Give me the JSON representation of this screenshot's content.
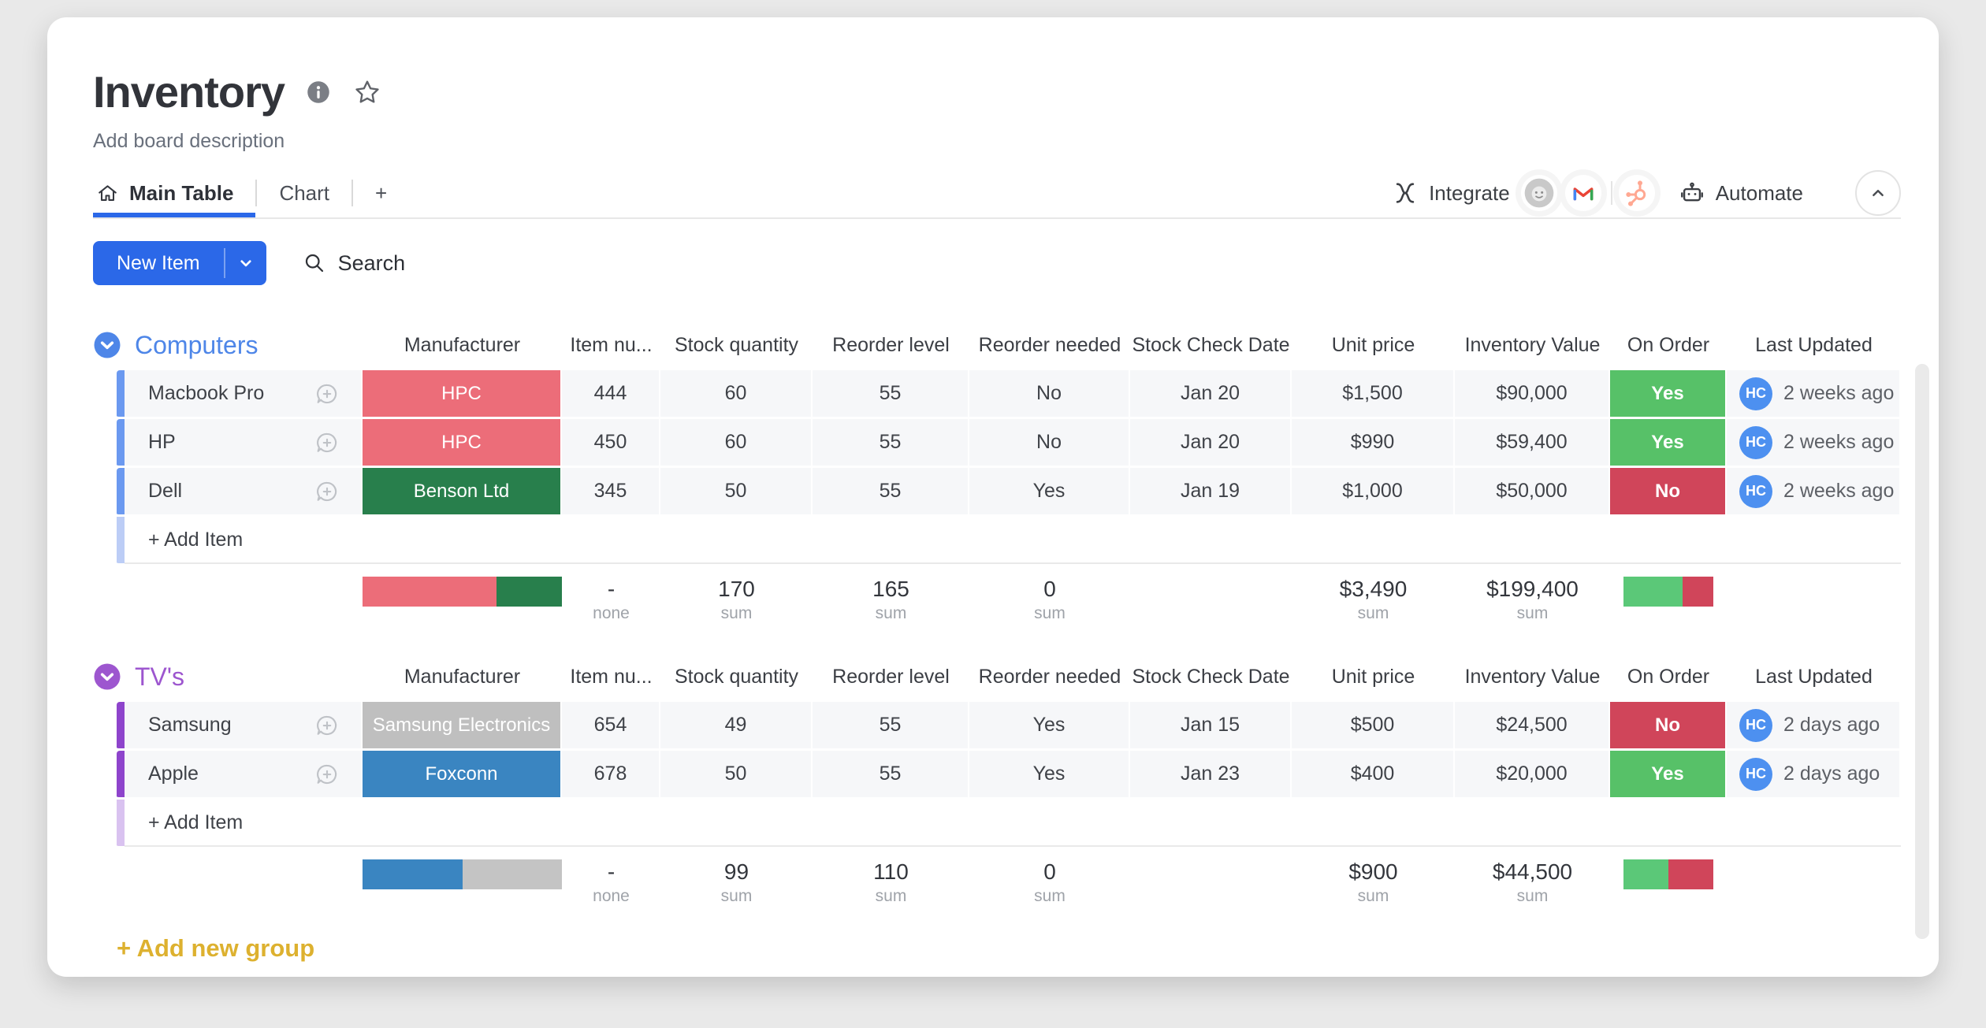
{
  "colors": {
    "accent_blue": "#2b68e8",
    "avatar_blue": "#4d90f0",
    "add_group_gold": "#ddb12f",
    "on_order_yes_green": "#57c168",
    "on_order_no_red": "#d0455a"
  },
  "icons": [
    "info-icon",
    "star-icon",
    "home-icon",
    "integrations-icon",
    "mailchimp-icon",
    "gmail-icon",
    "hubspot-icon",
    "automate-robot-icon",
    "collapse-up-icon",
    "caret-down-icon",
    "search-icon",
    "group-collapse-icon",
    "add-update-bubble-icon"
  ],
  "board": {
    "title": "Inventory",
    "description": "Add board description",
    "tabs": [
      {
        "label": "Main Table"
      },
      {
        "label": "Chart"
      }
    ],
    "new_tab_button": "+",
    "actions": {
      "integrate": "Integrate",
      "automate": "Automate"
    },
    "integration_icons": [
      "mailchimp",
      "gmail",
      "hubspot"
    ],
    "toolbar": {
      "new_item": "New Item",
      "search": "Search"
    },
    "add_new_group": "+ Add new group"
  },
  "table": {
    "columns": [
      "Manufacturer",
      "Item nu...",
      "Stock quantity",
      "Reorder level",
      "Reorder needed",
      "Stock Check Date",
      "Unit price",
      "Inventory Value",
      "On Order",
      "Last Updated"
    ]
  },
  "groups": [
    {
      "name": "Computers",
      "color": "#4e86e8",
      "row_bar_color": "#6b99f0",
      "add_bar_color": "#bccdf6",
      "add_item": "+ Add Item",
      "rows": [
        {
          "name": "Macbook Pro",
          "manufacturer": {
            "label": "HPC",
            "color": "#ec6d79"
          },
          "item_number": "444",
          "stock_quantity": "60",
          "reorder_level": "55",
          "reorder_needed": "No",
          "stock_check_date": "Jan 20",
          "unit_price": "$1,500",
          "inventory_value": "$90,000",
          "on_order": {
            "label": "Yes",
            "color": "#57c168"
          },
          "avatar": "HC",
          "last_updated": "2 weeks ago"
        },
        {
          "name": "HP",
          "manufacturer": {
            "label": "HPC",
            "color": "#ec6d79"
          },
          "item_number": "450",
          "stock_quantity": "60",
          "reorder_level": "55",
          "reorder_needed": "No",
          "stock_check_date": "Jan 20",
          "unit_price": "$990",
          "inventory_value": "$59,400",
          "on_order": {
            "label": "Yes",
            "color": "#57c168"
          },
          "avatar": "HC",
          "last_updated": "2 weeks ago"
        },
        {
          "name": "Dell",
          "manufacturer": {
            "label": "Benson Ltd",
            "color": "#287f4c"
          },
          "item_number": "345",
          "stock_quantity": "50",
          "reorder_level": "55",
          "reorder_needed": "Yes",
          "stock_check_date": "Jan 19",
          "unit_price": "$1,000",
          "inventory_value": "$50,000",
          "on_order": {
            "label": "No",
            "color": "#d0455a"
          },
          "avatar": "HC",
          "last_updated": "2 weeks ago"
        }
      ],
      "summary": {
        "manufacturer_bar": [
          {
            "color": "#ec6d79",
            "pct": 67
          },
          {
            "color": "#287f4c",
            "pct": 33
          }
        ],
        "item_number": {
          "value": "-",
          "label": "none"
        },
        "stock_quantity": {
          "value": "170",
          "label": "sum"
        },
        "reorder_level": {
          "value": "165",
          "label": "sum"
        },
        "reorder_needed": {
          "value": "0",
          "label": "sum"
        },
        "unit_price": {
          "value": "$3,490",
          "label": "sum"
        },
        "inventory_value": {
          "value": "$199,400",
          "label": "sum"
        },
        "on_order_bar": [
          {
            "color": "#5bc878",
            "pct": 66
          },
          {
            "color": "#d0455a",
            "pct": 34
          }
        ]
      }
    },
    {
      "name": "TV's",
      "color": "#9d56cf",
      "row_bar_color": "#8e44cc",
      "add_bar_color": "#d9c2f0",
      "add_item": "+ Add Item",
      "rows": [
        {
          "name": "Samsung",
          "manufacturer": {
            "label": "Samsung Electronics",
            "color": "#bfbfbf"
          },
          "item_number": "654",
          "stock_quantity": "49",
          "reorder_level": "55",
          "reorder_needed": "Yes",
          "stock_check_date": "Jan 15",
          "unit_price": "$500",
          "inventory_value": "$24,500",
          "on_order": {
            "label": "No",
            "color": "#d0455a"
          },
          "avatar": "HC",
          "last_updated": "2 days ago"
        },
        {
          "name": "Apple",
          "manufacturer": {
            "label": "Foxconn",
            "color": "#3a85c1"
          },
          "item_number": "678",
          "stock_quantity": "50",
          "reorder_level": "55",
          "reorder_needed": "Yes",
          "stock_check_date": "Jan 23",
          "unit_price": "$400",
          "inventory_value": "$20,000",
          "on_order": {
            "label": "Yes",
            "color": "#57c168"
          },
          "avatar": "HC",
          "last_updated": "2 days ago"
        }
      ],
      "summary": {
        "manufacturer_bar": [
          {
            "color": "#3a85c1",
            "pct": 50
          },
          {
            "color": "#c4c4c4",
            "pct": 50
          }
        ],
        "item_number": {
          "value": "-",
          "label": "none"
        },
        "stock_quantity": {
          "value": "99",
          "label": "sum"
        },
        "reorder_level": {
          "value": "110",
          "label": "sum"
        },
        "reorder_needed": {
          "value": "0",
          "label": "sum"
        },
        "unit_price": {
          "value": "$900",
          "label": "sum"
        },
        "inventory_value": {
          "value": "$44,500",
          "label": "sum"
        },
        "on_order_bar": [
          {
            "color": "#5bc878",
            "pct": 50
          },
          {
            "color": "#d0455a",
            "pct": 50
          }
        ]
      }
    }
  ]
}
